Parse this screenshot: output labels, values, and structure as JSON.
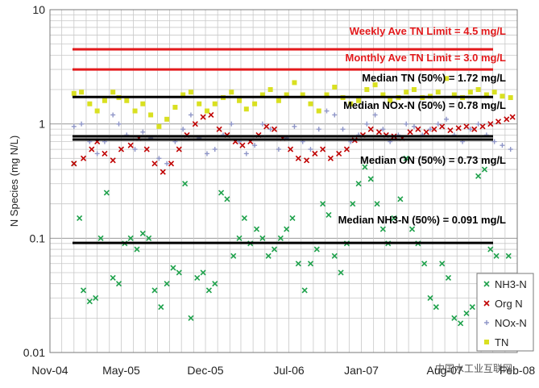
{
  "chart_data": {
    "type": "scatter",
    "title": "",
    "xlabel": "",
    "ylabel": "N Species (mg N/L)",
    "y_scale": "log",
    "ylim": [
      0.01,
      10
    ],
    "y_ticks": [
      "0.01",
      "0.1",
      "1",
      "10"
    ],
    "xlim": [
      "2004-11-01",
      "2008-02-01"
    ],
    "x_ticks": [
      {
        "date": "2004-11-01",
        "label": "Nov-04"
      },
      {
        "date": "2005-05-01",
        "label": "May-05"
      },
      {
        "date": "2005-12-01",
        "label": "Dec-05"
      },
      {
        "date": "2006-07-01",
        "label": "Jul-06"
      },
      {
        "date": "2007-01-01",
        "label": "Jan-07"
      },
      {
        "date": "2007-08-01",
        "label": "Aug-07"
      },
      {
        "date": "2008-02-01",
        "label": "Feb-08"
      }
    ],
    "grid": true,
    "legend_position": "bottom-right",
    "reference_lines": [
      {
        "label": "Weekly Ave TN Limit = 4.5 mg/L",
        "value": 4.5,
        "color": "#e31a1c"
      },
      {
        "label": "Monthly Ave  TN Limit = 3.0 mg/L",
        "value": 3.0,
        "color": "#e31a1c"
      },
      {
        "label": "Median TN (50%) = 1.72 mg/L",
        "value": 1.72,
        "color": "#000000"
      },
      {
        "label": "Median NOx-N (50%) = 0.78 mg/L",
        "value": 0.78,
        "color": "#000000"
      },
      {
        "label": "Median ON (50%) = 0.73 mg/L",
        "value": 0.73,
        "color": "#000000"
      },
      {
        "label": "Median NH3-N (50%) = 0.091 mg/L",
        "value": 0.091,
        "color": "#000000"
      }
    ],
    "series": [
      {
        "name": "NH3-N",
        "marker": "x",
        "color": "#1ea14b",
        "points": [
          [
            "2005-01-01",
            0.45
          ],
          [
            "2005-01-15",
            0.15
          ],
          [
            "2005-01-25",
            0.035
          ],
          [
            "2005-02-10",
            0.028
          ],
          [
            "2005-02-25",
            0.03
          ],
          [
            "2005-03-10",
            0.1
          ],
          [
            "2005-03-25",
            0.25
          ],
          [
            "2005-04-10",
            0.045
          ],
          [
            "2005-04-25",
            0.04
          ],
          [
            "2005-05-10",
            0.09
          ],
          [
            "2005-05-25",
            0.1
          ],
          [
            "2005-06-10",
            0.08
          ],
          [
            "2005-06-25",
            0.11
          ],
          [
            "2005-07-10",
            0.1
          ],
          [
            "2005-07-25",
            0.035
          ],
          [
            "2005-08-10",
            0.025
          ],
          [
            "2005-08-25",
            0.04
          ],
          [
            "2005-09-10",
            0.055
          ],
          [
            "2005-09-25",
            0.05
          ],
          [
            "2005-10-10",
            0.3
          ],
          [
            "2005-10-25",
            0.02
          ],
          [
            "2005-11-10",
            0.045
          ],
          [
            "2005-11-25",
            0.05
          ],
          [
            "2005-12-10",
            0.035
          ],
          [
            "2005-12-25",
            0.04
          ],
          [
            "2006-01-10",
            0.25
          ],
          [
            "2006-01-25",
            0.22
          ],
          [
            "2006-02-10",
            0.07
          ],
          [
            "2006-02-25",
            0.1
          ],
          [
            "2006-03-10",
            0.15
          ],
          [
            "2006-03-25",
            0.09
          ],
          [
            "2006-04-10",
            0.12
          ],
          [
            "2006-04-25",
            0.1
          ],
          [
            "2006-05-10",
            0.07
          ],
          [
            "2006-05-25",
            0.08
          ],
          [
            "2006-06-10",
            0.1
          ],
          [
            "2006-06-25",
            0.12
          ],
          [
            "2006-07-10",
            0.15
          ],
          [
            "2006-07-25",
            0.06
          ],
          [
            "2006-08-10",
            0.035
          ],
          [
            "2006-08-25",
            0.06
          ],
          [
            "2006-09-10",
            0.08
          ],
          [
            "2006-09-25",
            0.2
          ],
          [
            "2006-10-10",
            0.16
          ],
          [
            "2006-10-25",
            0.07
          ],
          [
            "2006-11-10",
            0.05
          ],
          [
            "2006-11-25",
            0.09
          ],
          [
            "2006-12-10",
            0.2
          ],
          [
            "2006-12-25",
            0.3
          ],
          [
            "2007-01-10",
            0.42
          ],
          [
            "2007-01-25",
            0.33
          ],
          [
            "2007-02-10",
            0.2
          ],
          [
            "2007-02-25",
            0.12
          ],
          [
            "2007-03-10",
            0.09
          ],
          [
            "2007-03-25",
            0.15
          ],
          [
            "2007-04-10",
            0.22
          ],
          [
            "2007-04-25",
            0.5
          ],
          [
            "2007-05-10",
            0.12
          ],
          [
            "2007-05-25",
            0.09
          ],
          [
            "2007-06-10",
            0.06
          ],
          [
            "2007-06-25",
            0.03
          ],
          [
            "2007-07-10",
            0.025
          ],
          [
            "2007-07-25",
            0.06
          ],
          [
            "2007-08-10",
            0.045
          ],
          [
            "2007-08-25",
            0.02
          ],
          [
            "2007-09-10",
            0.018
          ],
          [
            "2007-09-25",
            0.022
          ],
          [
            "2007-10-10",
            0.025
          ],
          [
            "2007-10-25",
            0.35
          ],
          [
            "2007-11-10",
            0.4
          ],
          [
            "2007-11-25",
            0.08
          ],
          [
            "2007-12-10",
            0.07
          ],
          [
            "2008-01-10",
            0.07
          ]
        ]
      },
      {
        "name": "Org N",
        "marker": "x",
        "color": "#c00000",
        "points": [
          [
            "2005-01-01",
            0.45
          ],
          [
            "2005-01-25",
            0.5
          ],
          [
            "2005-02-15",
            0.6
          ],
          [
            "2005-03-01",
            0.7
          ],
          [
            "2005-03-20",
            0.55
          ],
          [
            "2005-04-10",
            0.48
          ],
          [
            "2005-05-01",
            0.6
          ],
          [
            "2005-05-25",
            0.65
          ],
          [
            "2005-06-15",
            0.75
          ],
          [
            "2005-07-05",
            0.6
          ],
          [
            "2005-07-25",
            0.45
          ],
          [
            "2005-08-15",
            0.38
          ],
          [
            "2005-09-05",
            0.45
          ],
          [
            "2005-09-25",
            0.6
          ],
          [
            "2005-10-15",
            0.8
          ],
          [
            "2005-11-05",
            1.0
          ],
          [
            "2005-11-25",
            1.15
          ],
          [
            "2005-12-15",
            1.2
          ],
          [
            "2006-01-05",
            0.9
          ],
          [
            "2006-01-25",
            0.8
          ],
          [
            "2006-02-15",
            0.7
          ],
          [
            "2006-03-05",
            0.65
          ],
          [
            "2006-03-25",
            0.7
          ],
          [
            "2006-04-15",
            0.8
          ],
          [
            "2006-05-05",
            0.95
          ],
          [
            "2006-05-25",
            0.9
          ],
          [
            "2006-06-15",
            0.75
          ],
          [
            "2006-07-05",
            0.6
          ],
          [
            "2006-07-25",
            0.5
          ],
          [
            "2006-08-15",
            0.48
          ],
          [
            "2006-09-05",
            0.55
          ],
          [
            "2006-09-25",
            0.6
          ],
          [
            "2006-10-15",
            0.5
          ],
          [
            "2006-11-05",
            0.55
          ],
          [
            "2006-11-25",
            0.6
          ],
          [
            "2006-12-15",
            0.72
          ],
          [
            "2007-01-05",
            0.8
          ],
          [
            "2007-01-25",
            0.9
          ],
          [
            "2007-02-15",
            0.85
          ],
          [
            "2007-03-05",
            0.8
          ],
          [
            "2007-03-25",
            0.78
          ],
          [
            "2007-04-15",
            0.75
          ],
          [
            "2007-05-05",
            0.85
          ],
          [
            "2007-05-25",
            0.9
          ],
          [
            "2007-06-15",
            0.85
          ],
          [
            "2007-07-05",
            0.9
          ],
          [
            "2007-07-25",
            0.95
          ],
          [
            "2007-08-15",
            0.88
          ],
          [
            "2007-09-05",
            0.92
          ],
          [
            "2007-09-25",
            0.95
          ],
          [
            "2007-10-15",
            0.9
          ],
          [
            "2007-11-05",
            0.95
          ],
          [
            "2007-11-25",
            1.0
          ],
          [
            "2007-12-15",
            1.05
          ],
          [
            "2008-01-05",
            1.1
          ],
          [
            "2008-01-20",
            1.15
          ]
        ]
      },
      {
        "name": "NOx-N",
        "marker": "+",
        "color": "#8f96c8",
        "points": [
          [
            "2005-01-01",
            0.95
          ],
          [
            "2005-01-20",
            1.0
          ],
          [
            "2005-02-10",
            0.7
          ],
          [
            "2005-03-01",
            0.55
          ],
          [
            "2005-03-20",
            0.7
          ],
          [
            "2005-04-10",
            1.2
          ],
          [
            "2005-04-25",
            1.0
          ],
          [
            "2005-05-15",
            0.8
          ],
          [
            "2005-06-05",
            0.6
          ],
          [
            "2005-06-25",
            0.85
          ],
          [
            "2005-07-15",
            0.75
          ],
          [
            "2005-08-05",
            0.5
          ],
          [
            "2005-08-25",
            0.45
          ],
          [
            "2005-09-15",
            0.7
          ],
          [
            "2005-10-05",
            0.9
          ],
          [
            "2005-10-25",
            1.2
          ],
          [
            "2005-11-15",
            0.75
          ],
          [
            "2005-12-05",
            0.55
          ],
          [
            "2005-12-25",
            0.6
          ],
          [
            "2006-01-15",
            0.8
          ],
          [
            "2006-02-05",
            1.0
          ],
          [
            "2006-02-25",
            0.7
          ],
          [
            "2006-03-15",
            0.55
          ],
          [
            "2006-04-05",
            0.65
          ],
          [
            "2006-04-25",
            1.0
          ],
          [
            "2006-05-15",
            0.9
          ],
          [
            "2006-06-05",
            0.6
          ],
          [
            "2006-06-25",
            0.75
          ],
          [
            "2006-07-15",
            0.95
          ],
          [
            "2006-08-05",
            0.7
          ],
          [
            "2006-08-25",
            0.6
          ],
          [
            "2006-09-15",
            0.9
          ],
          [
            "2006-10-05",
            1.3
          ],
          [
            "2006-10-25",
            1.2
          ],
          [
            "2006-11-15",
            0.9
          ],
          [
            "2006-12-05",
            0.7
          ],
          [
            "2006-12-25",
            0.8
          ],
          [
            "2007-01-15",
            1.0
          ],
          [
            "2007-02-05",
            1.2
          ],
          [
            "2007-02-25",
            0.9
          ],
          [
            "2007-03-15",
            0.7
          ],
          [
            "2007-04-05",
            0.8
          ],
          [
            "2007-04-25",
            1.0
          ],
          [
            "2007-05-15",
            0.95
          ],
          [
            "2007-06-05",
            0.8
          ],
          [
            "2007-06-25",
            0.9
          ],
          [
            "2007-07-15",
            1.0
          ],
          [
            "2007-08-05",
            1.1
          ],
          [
            "2007-08-25",
            0.8
          ],
          [
            "2007-09-15",
            0.7
          ],
          [
            "2007-10-05",
            0.9
          ],
          [
            "2007-10-25",
            1.0
          ],
          [
            "2007-11-15",
            0.8
          ],
          [
            "2007-12-05",
            0.7
          ],
          [
            "2007-12-25",
            0.65
          ],
          [
            "2008-01-15",
            0.6
          ]
        ]
      },
      {
        "name": "TN",
        "marker": "square",
        "color": "#d9e021",
        "points": [
          [
            "2005-01-01",
            1.85
          ],
          [
            "2005-01-20",
            1.9
          ],
          [
            "2005-02-10",
            1.5
          ],
          [
            "2005-03-01",
            1.3
          ],
          [
            "2005-03-20",
            1.6
          ],
          [
            "2005-04-10",
            1.9
          ],
          [
            "2005-04-25",
            1.7
          ],
          [
            "2005-05-15",
            1.6
          ],
          [
            "2005-06-05",
            1.3
          ],
          [
            "2005-06-25",
            1.5
          ],
          [
            "2005-07-15",
            1.2
          ],
          [
            "2005-08-05",
            0.95
          ],
          [
            "2005-08-25",
            1.1
          ],
          [
            "2005-09-15",
            1.4
          ],
          [
            "2005-10-05",
            1.8
          ],
          [
            "2005-10-25",
            1.9
          ],
          [
            "2005-11-15",
            1.5
          ],
          [
            "2005-12-05",
            1.3
          ],
          [
            "2005-12-25",
            1.5
          ],
          [
            "2006-01-15",
            1.7
          ],
          [
            "2006-02-05",
            1.9
          ],
          [
            "2006-02-25",
            1.6
          ],
          [
            "2006-03-15",
            1.35
          ],
          [
            "2006-04-05",
            1.5
          ],
          [
            "2006-04-25",
            1.8
          ],
          [
            "2006-05-15",
            2.0
          ],
          [
            "2006-06-05",
            1.6
          ],
          [
            "2006-06-25",
            1.8
          ],
          [
            "2006-07-15",
            2.3
          ],
          [
            "2006-08-05",
            1.8
          ],
          [
            "2006-08-25",
            1.5
          ],
          [
            "2006-09-15",
            1.3
          ],
          [
            "2006-10-05",
            1.8
          ],
          [
            "2006-10-25",
            2.1
          ],
          [
            "2006-11-15",
            1.7
          ],
          [
            "2006-12-05",
            1.5
          ],
          [
            "2006-12-25",
            1.6
          ],
          [
            "2007-01-15",
            2.0
          ],
          [
            "2007-02-05",
            2.2
          ],
          [
            "2007-02-25",
            1.8
          ],
          [
            "2007-03-15",
            1.6
          ],
          [
            "2007-04-05",
            1.7
          ],
          [
            "2007-04-25",
            1.9
          ],
          [
            "2007-05-15",
            2.0
          ],
          [
            "2007-06-05",
            1.7
          ],
          [
            "2007-06-25",
            1.75
          ],
          [
            "2007-07-15",
            1.9
          ],
          [
            "2007-08-05",
            2.5
          ],
          [
            "2007-08-25",
            1.8
          ],
          [
            "2007-09-15",
            1.7
          ],
          [
            "2007-10-05",
            1.9
          ],
          [
            "2007-10-25",
            2.0
          ],
          [
            "2007-11-15",
            1.8
          ],
          [
            "2007-12-05",
            1.9
          ],
          [
            "2007-12-25",
            1.75
          ],
          [
            "2008-01-15",
            1.7
          ]
        ]
      }
    ]
  },
  "watermark": "中国水工业互联网"
}
